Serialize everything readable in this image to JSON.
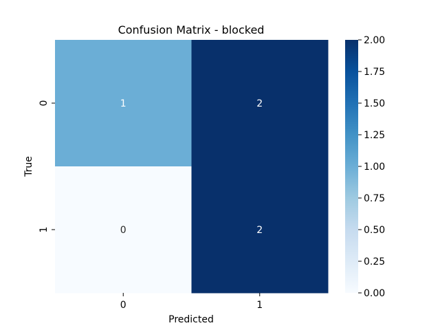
{
  "chart_data": {
    "type": "heatmap",
    "title": "Confusion Matrix - blocked",
    "xlabel": "Predicted",
    "ylabel": "True",
    "x_categories": [
      "0",
      "1"
    ],
    "y_categories": [
      "0",
      "1"
    ],
    "values": [
      [
        1,
        2
      ],
      [
        0,
        2
      ]
    ],
    "value_labels": [
      [
        "1",
        "2"
      ],
      [
        "0",
        "2"
      ]
    ],
    "colormap": "Blues",
    "vmin": 0,
    "vmax": 2,
    "colorbar_ticks": [
      "0.00",
      "0.25",
      "0.50",
      "0.75",
      "1.00",
      "1.25",
      "1.50",
      "1.75",
      "2.00"
    ],
    "colors": {
      "low": "#f7fbff",
      "mid": "#6baed6",
      "high": "#08306b",
      "label_light": "#ffffff",
      "label_dark": "#262626"
    }
  }
}
